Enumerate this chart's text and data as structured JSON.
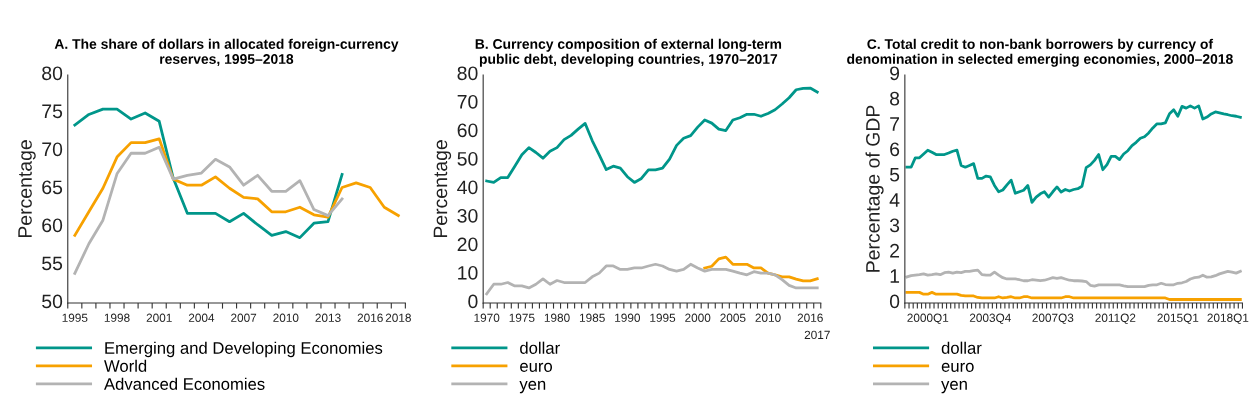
{
  "chart_data": [
    {
      "type": "line",
      "title": "A. The share of dollars in allocated foreign-currency\nreserves, 1995–2018",
      "ylabel": "Percentage",
      "categories": [
        "1995",
        null,
        null,
        "1998",
        null,
        null,
        "2001",
        null,
        null,
        "2004",
        null,
        null,
        "2007",
        null,
        null,
        "2010",
        null,
        null,
        "2013",
        null,
        null,
        "2016",
        null,
        "2018"
      ],
      "ylim": [
        50,
        80
      ],
      "yticks": [
        50,
        55,
        60,
        65,
        70,
        75,
        80
      ],
      "grid": false,
      "legend": "bottom",
      "series": [
        {
          "name": "Emerging and Developing Economies",
          "color": "#00968a",
          "values": [
            73.4,
            74.8,
            75.5,
            75.5,
            74.2,
            75.0,
            73.9,
            66.4,
            61.8,
            61.8,
            61.8,
            60.7,
            61.8,
            60.3,
            58.9,
            59.4,
            58.6,
            60.5,
            60.7,
            66.9,
            null,
            null,
            null,
            null
          ]
        },
        {
          "name": "World",
          "color": "#f7a100",
          "values": [
            58.9,
            62.0,
            65.1,
            69.2,
            71.1,
            71.1,
            71.6,
            66.3,
            65.5,
            65.5,
            66.6,
            65.1,
            63.9,
            63.7,
            62.0,
            62.0,
            62.6,
            61.6,
            61.3,
            65.2,
            65.8,
            65.2,
            62.6,
            61.5
          ]
        },
        {
          "name": "Advanced Economies",
          "color": "#b3b3b3",
          "values": [
            53.9,
            57.8,
            60.9,
            67.0,
            69.7,
            69.7,
            70.5,
            66.3,
            66.8,
            67.1,
            68.9,
            67.9,
            65.5,
            66.8,
            64.7,
            64.7,
            66.1,
            62.3,
            61.5,
            63.7,
            null,
            null,
            null,
            null
          ]
        }
      ]
    },
    {
      "type": "line",
      "title": "B. Currency composition of external long-term\npublic debt, developing countries, 1970–2017",
      "ylabel": "Percentage",
      "categories": [
        "1970",
        null,
        null,
        null,
        null,
        "1975",
        null,
        null,
        null,
        null,
        "1980",
        null,
        null,
        null,
        null,
        "1985",
        null,
        null,
        null,
        null,
        "1990",
        null,
        null,
        null,
        null,
        "1995",
        null,
        null,
        null,
        null,
        "2000",
        null,
        null,
        null,
        null,
        "2005",
        null,
        null,
        null,
        null,
        "2010",
        null,
        null,
        null,
        null,
        null,
        "2016",
        "2017"
      ],
      "ylim": [
        0,
        80
      ],
      "yticks": [
        0,
        10,
        20,
        30,
        40,
        50,
        60,
        70,
        80
      ],
      "grid": false,
      "legend": "bottom",
      "series": [
        {
          "name": "dollar",
          "color": "#00968a",
          "values": [
            42.8,
            42.3,
            44.0,
            44.0,
            48.0,
            52.0,
            54.5,
            52.8,
            50.8,
            53.2,
            54.5,
            57.3,
            58.8,
            61.0,
            63.0,
            57.0,
            52.0,
            46.8,
            48.0,
            47.3,
            44.3,
            42.3,
            43.7,
            46.7,
            46.7,
            47.3,
            50.5,
            55.3,
            57.8,
            58.7,
            61.7,
            64.2,
            63.1,
            61.0,
            60.5,
            64.2,
            65.0,
            66.2,
            66.2,
            65.5,
            66.5,
            67.8,
            69.8,
            72.0,
            74.8,
            75.3,
            75.4,
            74.0
          ]
        },
        {
          "name": "euro",
          "color": "#f7a100",
          "values": [
            null,
            null,
            null,
            null,
            null,
            null,
            null,
            null,
            null,
            null,
            null,
            null,
            null,
            null,
            null,
            null,
            null,
            null,
            null,
            null,
            null,
            null,
            null,
            null,
            null,
            null,
            null,
            null,
            null,
            null,
            null,
            12.3,
            12.9,
            15.5,
            16.1,
            13.6,
            13.6,
            13.6,
            12.3,
            12.3,
            10.5,
            9.9,
            9.2,
            9.2,
            8.4,
            7.8,
            7.8,
            8.5
          ]
        },
        {
          "name": "yen",
          "color": "#b3b3b3",
          "values": [
            3.2,
            6.6,
            6.6,
            7.2,
            6.0,
            6.0,
            5.3,
            6.6,
            8.5,
            6.6,
            7.9,
            7.2,
            7.2,
            7.2,
            7.2,
            9.2,
            10.5,
            13.0,
            13.0,
            11.8,
            11.8,
            12.3,
            12.3,
            13.0,
            13.6,
            13.0,
            11.8,
            11.2,
            11.8,
            13.6,
            12.3,
            11.2,
            11.8,
            11.8,
            11.8,
            11.2,
            10.5,
            9.9,
            11.0,
            10.5,
            10.5,
            9.9,
            8.2,
            6.2,
            5.3,
            5.3,
            5.3,
            5.3
          ]
        }
      ]
    },
    {
      "type": "line",
      "title": "C. Total credit to non-bank borrowers by currency of\ndenomination in selected emerging economies, 2000–2018",
      "ylabel": "Percentage of GDP",
      "categories": [
        null,
        null,
        null,
        null,
        null,
        "2000Q1",
        null,
        null,
        null,
        null,
        null,
        null,
        null,
        null,
        null,
        null,
        null,
        null,
        null,
        null,
        "2003Q4",
        null,
        null,
        null,
        null,
        null,
        null,
        null,
        null,
        null,
        null,
        null,
        null,
        null,
        null,
        "2007Q3",
        null,
        null,
        null,
        null,
        null,
        null,
        null,
        null,
        null,
        null,
        null,
        null,
        null,
        null,
        "2011Q2",
        null,
        null,
        null,
        null,
        null,
        null,
        null,
        null,
        null,
        null,
        null,
        null,
        null,
        null,
        "2015Q1",
        null,
        null,
        null,
        null,
        null,
        null,
        null,
        null,
        null,
        null,
        null,
        "2018Q1",
        null,
        null,
        null
      ],
      "ylim": [
        0,
        9
      ],
      "yticks": [
        0,
        1,
        2,
        3,
        4,
        5,
        6,
        7,
        8,
        9
      ],
      "grid": false,
      "legend": "bottom",
      "series": [
        {
          "name": "dollar",
          "color": "#00968a",
          "values": [
            5.36,
            5.36,
            5.73,
            5.73,
            5.88,
            6.03,
            5.95,
            5.86,
            5.86,
            5.86,
            5.92,
            5.99,
            6.03,
            5.43,
            5.36,
            5.43,
            5.5,
            4.92,
            4.92,
            5.01,
            4.98,
            4.64,
            4.39,
            4.46,
            4.66,
            4.85,
            4.33,
            4.39,
            4.45,
            4.64,
            3.97,
            4.18,
            4.31,
            4.39,
            4.18,
            4.39,
            4.58,
            4.38,
            4.48,
            4.42,
            4.48,
            4.51,
            4.61,
            5.34,
            5.45,
            5.63,
            5.86,
            5.26,
            5.46,
            5.79,
            5.79,
            5.66,
            5.88,
            6.01,
            6.21,
            6.34,
            6.5,
            6.56,
            6.71,
            6.91,
            7.07,
            7.07,
            7.11,
            7.47,
            7.63,
            7.37,
            7.76,
            7.69,
            7.78,
            7.69,
            7.78,
            7.26,
            7.34,
            7.46,
            7.54,
            7.5,
            7.46,
            7.43,
            7.39,
            7.37,
            7.33
          ]
        },
        {
          "name": "euro",
          "color": "#f7a100",
          "values": [
            0.42,
            0.42,
            0.42,
            0.42,
            0.35,
            0.35,
            0.42,
            0.35,
            0.35,
            0.35,
            0.35,
            0.35,
            0.35,
            0.3,
            0.28,
            0.28,
            0.28,
            0.22,
            0.2,
            0.2,
            0.2,
            0.2,
            0.25,
            0.2,
            0.22,
            0.25,
            0.2,
            0.2,
            0.25,
            0.25,
            0.2,
            0.2,
            0.2,
            0.2,
            0.2,
            0.2,
            0.2,
            0.2,
            0.25,
            0.25,
            0.2,
            0.2,
            0.2,
            0.2,
            0.2,
            0.2,
            0.2,
            0.2,
            0.2,
            0.2,
            0.2,
            0.2,
            0.2,
            0.2,
            0.2,
            0.2,
            0.2,
            0.2,
            0.2,
            0.2,
            0.2,
            0.2,
            0.2,
            0.14,
            0.14,
            0.14,
            0.14,
            0.14,
            0.14,
            0.14,
            0.14,
            0.14,
            0.14,
            0.14,
            0.14,
            0.14,
            0.14,
            0.14,
            0.14,
            0.14,
            0.14
          ]
        },
        {
          "name": "yen",
          "color": "#b3b3b3",
          "values": [
            1.03,
            1.08,
            1.1,
            1.12,
            1.15,
            1.1,
            1.12,
            1.15,
            1.12,
            1.2,
            1.22,
            1.18,
            1.22,
            1.2,
            1.25,
            1.25,
            1.28,
            1.3,
            1.12,
            1.1,
            1.1,
            1.22,
            1.1,
            1.0,
            0.95,
            0.95,
            0.95,
            0.92,
            0.88,
            0.88,
            0.92,
            0.9,
            0.88,
            0.9,
            0.95,
            1.0,
            0.97,
            1.0,
            0.95,
            0.9,
            0.88,
            0.88,
            0.87,
            0.85,
            0.7,
            0.67,
            0.72,
            0.72,
            0.72,
            0.72,
            0.72,
            0.72,
            0.68,
            0.65,
            0.65,
            0.65,
            0.65,
            0.65,
            0.7,
            0.72,
            0.72,
            0.78,
            0.73,
            0.72,
            0.72,
            0.78,
            0.8,
            0.85,
            0.95,
            1.0,
            1.02,
            1.1,
            1.02,
            1.03,
            1.08,
            1.15,
            1.2,
            1.25,
            1.22,
            1.18,
            1.25
          ]
        }
      ]
    }
  ]
}
